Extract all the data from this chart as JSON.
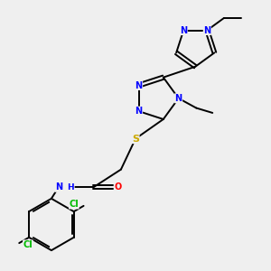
{
  "bg_color": "#efefef",
  "atom_colors": {
    "N": "#0000ff",
    "O": "#ff0000",
    "S": "#ccaa00",
    "Cl": "#00bb00",
    "C": "#000000",
    "H": "#000000"
  },
  "bond_color": "#000000",
  "font_size": 7.0
}
